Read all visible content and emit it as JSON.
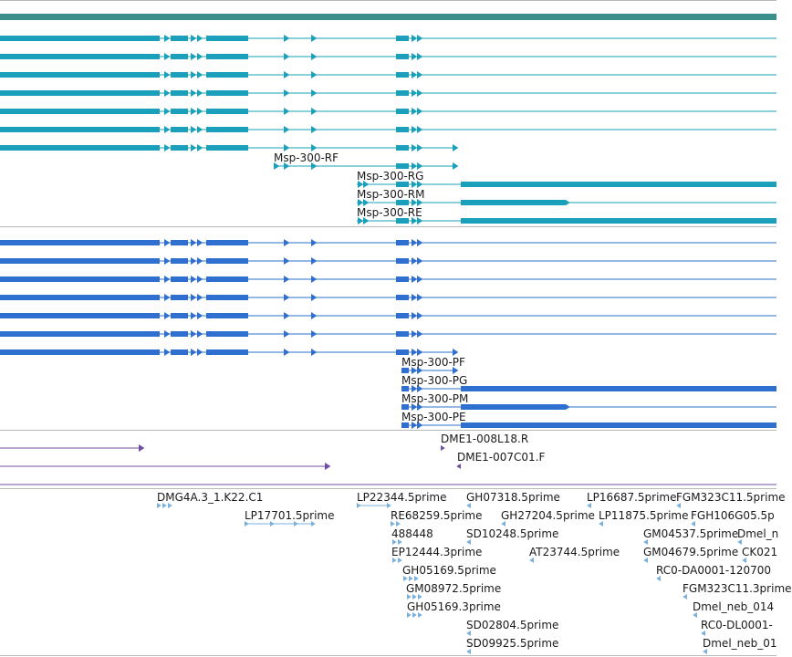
{
  "colors": {
    "top_bar": "#3a8f8c",
    "transcript_teal": "#1ba0bb",
    "transcript_blue": "#2f6fcf",
    "est_purple": "#6f4fa3",
    "est_lightblue": "#7ab0dc",
    "separator": "#b8b8b8"
  },
  "tracks": {
    "gene_models_1": {
      "labels": [
        "Msp-300-RF",
        "Msp-300-RG",
        "Msp-300-RM",
        "Msp-300-RE"
      ]
    },
    "gene_models_2": {
      "labels": [
        "Msp-300-PF",
        "Msp-300-PG",
        "Msp-300-PM",
        "Msp-300-PE"
      ]
    },
    "clones": {
      "labels": [
        "DME1-008L18.R",
        "DME1-007C01.F"
      ]
    },
    "ests": {
      "labels": [
        "DMG4A.3_1.K22.C1",
        "LP17701.5prime",
        "LP22344.5prime",
        "RE68259.5prime",
        "488448",
        "EP12444.3prime",
        "GH05169.5prime",
        "GM08972.5prime",
        "GH05169.3prime",
        "GH07318.5prime",
        "SD10248.5prime",
        "GH27204.5prime",
        "AT23744.5prime",
        "SD02804.5prime",
        "SD09925.5prime",
        "LP16687.5prime",
        "LP11875.5prime",
        "FGM323C11.5prime",
        "FGH106G05.5p",
        "GM04537.5prime",
        "Dmel_n",
        "GM04679.5prime",
        "CK021",
        "RC0-DA0001-120700",
        "FGM323C11.3prime",
        "Dmel_neb_014",
        "RC0-DL0001-",
        "Dmel_neb_01"
      ]
    }
  }
}
